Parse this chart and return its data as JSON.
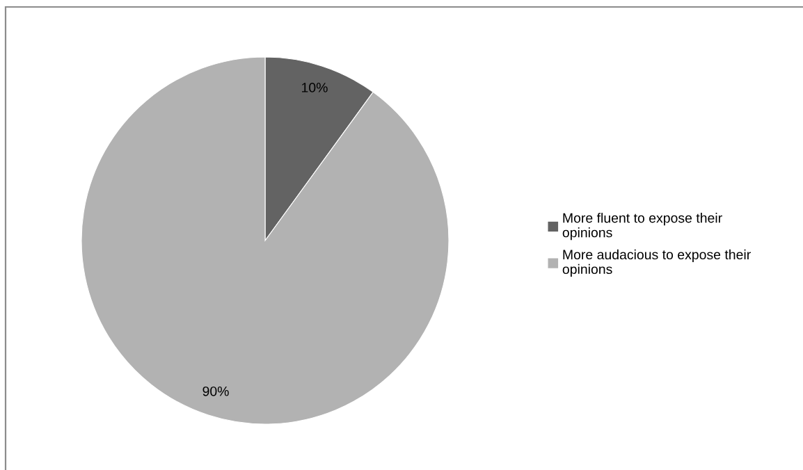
{
  "chart_data": {
    "type": "pie",
    "categories": [
      "More fluent to expose their opinions",
      "More audacious to expose their opinions"
    ],
    "values": [
      10,
      90
    ],
    "colors": [
      "#636363",
      "#b2b2b2"
    ],
    "value_labels": [
      "10%",
      "90%"
    ],
    "legend": "right"
  }
}
